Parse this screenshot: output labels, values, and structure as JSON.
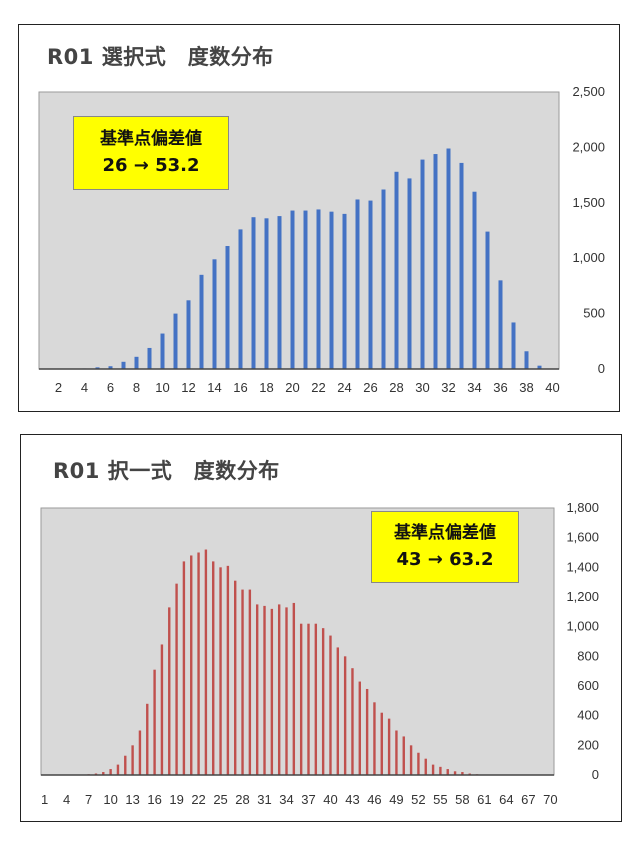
{
  "chart_data": [
    {
      "type": "bar",
      "title": "R01 選択式　度数分布",
      "color": "#4472c4",
      "x_tick_labels": [
        "2",
        "4",
        "6",
        "8",
        "10",
        "12",
        "14",
        "16",
        "18",
        "20",
        "22",
        "24",
        "26",
        "28",
        "30",
        "32",
        "34",
        "36",
        "38",
        "40"
      ],
      "y_tick_labels": [
        "0",
        "500",
        "1,000",
        "1,500",
        "2,000",
        "2,500"
      ],
      "ylim": [
        0,
        2500
      ],
      "x": [
        1,
        2,
        3,
        4,
        5,
        6,
        7,
        8,
        9,
        10,
        11,
        12,
        13,
        14,
        15,
        16,
        17,
        18,
        19,
        20,
        21,
        22,
        23,
        24,
        25,
        26,
        27,
        28,
        29,
        30,
        31,
        32,
        33,
        34,
        35,
        36,
        37,
        38,
        39,
        40
      ],
      "values": [
        0,
        0,
        0,
        5,
        15,
        25,
        65,
        110,
        190,
        320,
        500,
        620,
        850,
        990,
        1110,
        1260,
        1370,
        1360,
        1380,
        1430,
        1430,
        1440,
        1420,
        1400,
        1530,
        1520,
        1620,
        1780,
        1720,
        1890,
        1940,
        1990,
        1860,
        1600,
        1240,
        800,
        420,
        160,
        30,
        0
      ],
      "annotation": {
        "line1": "基準点偏差値",
        "line2": "26 → 53.2"
      },
      "grid": false,
      "y_axis_side": "right"
    },
    {
      "type": "bar",
      "title": "R01 択一式　度数分布",
      "color": "#c0504d",
      "x_tick_labels": [
        "1",
        "4",
        "7",
        "10",
        "13",
        "16",
        "19",
        "22",
        "25",
        "28",
        "31",
        "34",
        "37",
        "40",
        "43",
        "46",
        "49",
        "52",
        "55",
        "58",
        "61",
        "64",
        "67",
        "70"
      ],
      "y_tick_labels": [
        "0",
        "200",
        "400",
        "600",
        "800",
        "1,000",
        "1,200",
        "1,400",
        "1,600",
        "1,800"
      ],
      "ylim": [
        0,
        1800
      ],
      "x": [
        1,
        2,
        3,
        4,
        5,
        6,
        7,
        8,
        9,
        10,
        11,
        12,
        13,
        14,
        15,
        16,
        17,
        18,
        19,
        20,
        21,
        22,
        23,
        24,
        25,
        26,
        27,
        28,
        29,
        30,
        31,
        32,
        33,
        34,
        35,
        36,
        37,
        38,
        39,
        40,
        41,
        42,
        43,
        44,
        45,
        46,
        47,
        48,
        49,
        50,
        51,
        52,
        53,
        54,
        55,
        56,
        57,
        58,
        59,
        60,
        61,
        62,
        63,
        64,
        65,
        66,
        67,
        68,
        69,
        70
      ],
      "values": [
        0,
        0,
        0,
        0,
        0,
        0,
        5,
        10,
        20,
        40,
        70,
        130,
        200,
        300,
        480,
        710,
        880,
        1130,
        1290,
        1440,
        1480,
        1500,
        1520,
        1440,
        1400,
        1410,
        1310,
        1250,
        1250,
        1150,
        1140,
        1120,
        1150,
        1130,
        1160,
        1020,
        1020,
        1020,
        990,
        940,
        860,
        800,
        720,
        630,
        580,
        490,
        420,
        380,
        300,
        260,
        200,
        150,
        110,
        70,
        55,
        40,
        25,
        20,
        10,
        5,
        0,
        0,
        0,
        0,
        0,
        0,
        0,
        0,
        0,
        0
      ],
      "annotation": {
        "line1": "基準点偏差値",
        "line2": "43 → 63.2"
      },
      "grid": false,
      "y_axis_side": "right"
    }
  ]
}
